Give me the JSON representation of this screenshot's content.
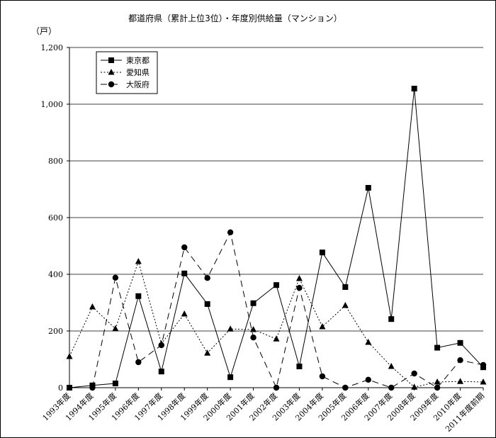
{
  "chart_data": {
    "type": "line",
    "title": "都道府県（累計上位3位）・年度別供給量（マンション）",
    "ylabel": "（戸）",
    "xlabel": "",
    "ylim": [
      0,
      1200
    ],
    "yticks": [
      0,
      200,
      400,
      600,
      800,
      1000,
      1200
    ],
    "ytick_labels": [
      "0",
      "200",
      "400",
      "600",
      "800",
      "1,000",
      "1,200"
    ],
    "grid": true,
    "legend_position": "top-left",
    "categories": [
      "1993年度",
      "1994年度",
      "1995年度",
      "1996年度",
      "1997年度",
      "1998年度",
      "1999年度",
      "2000年度",
      "2001年度",
      "2002年度",
      "2003年度",
      "2004年度",
      "2005年度",
      "2006年度",
      "2007年度",
      "2008年度",
      "2009年度",
      "2010年度",
      "2011年度前期"
    ],
    "series": [
      {
        "name": "東京都",
        "line": "solid",
        "marker": "square",
        "values": [
          0,
          8,
          15,
          323,
          57,
          403,
          295,
          37,
          298,
          362,
          75,
          477,
          355,
          705,
          242,
          1055,
          141,
          158,
          72
        ]
      },
      {
        "name": "愛知県",
        "line": "dotted",
        "marker": "triangle",
        "values": [
          110,
          285,
          208,
          445,
          155,
          260,
          122,
          207,
          205,
          172,
          385,
          215,
          290,
          160,
          75,
          2,
          20,
          22,
          20
        ]
      },
      {
        "name": "大阪府",
        "line": "dashed",
        "marker": "circle",
        "values": [
          null,
          0,
          388,
          90,
          150,
          495,
          387,
          548,
          177,
          0,
          352,
          40,
          0,
          28,
          0,
          50,
          0,
          97,
          80
        ]
      }
    ]
  }
}
